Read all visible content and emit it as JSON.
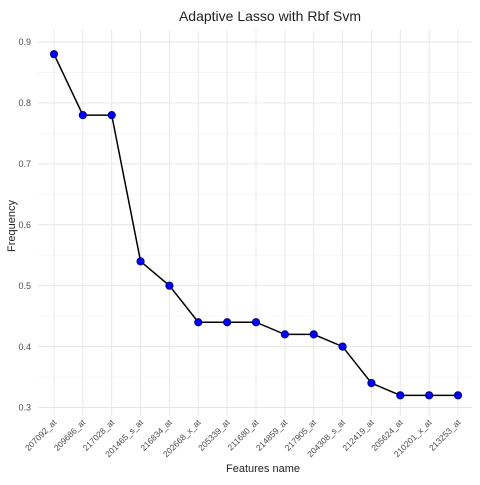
{
  "chart_data": {
    "type": "line",
    "title": "Adaptive Lasso with Rbf Svm",
    "xlabel": "Features name",
    "ylabel": "Frequency",
    "categories": [
      "207092_at",
      "209686_at",
      "217028_at",
      "201465_s_at",
      "216834_at",
      "202668_x_at",
      "205339_at",
      "211680_at",
      "214859_at",
      "217905_at",
      "204308_s_at",
      "212419_at",
      "205624_at",
      "210201_x_at",
      "213253_at"
    ],
    "values": [
      0.88,
      0.78,
      0.78,
      0.54,
      0.5,
      0.44,
      0.44,
      0.44,
      0.42,
      0.42,
      0.4,
      0.34,
      0.32,
      0.32,
      0.32
    ],
    "ylim": [
      0.3,
      0.9
    ],
    "yticks": [
      "0.3",
      "0.4",
      "0.5",
      "0.6",
      "0.7",
      "0.8",
      "0.9"
    ],
    "grid": true,
    "point_color": "#0000ff",
    "line_color": "#000000"
  }
}
